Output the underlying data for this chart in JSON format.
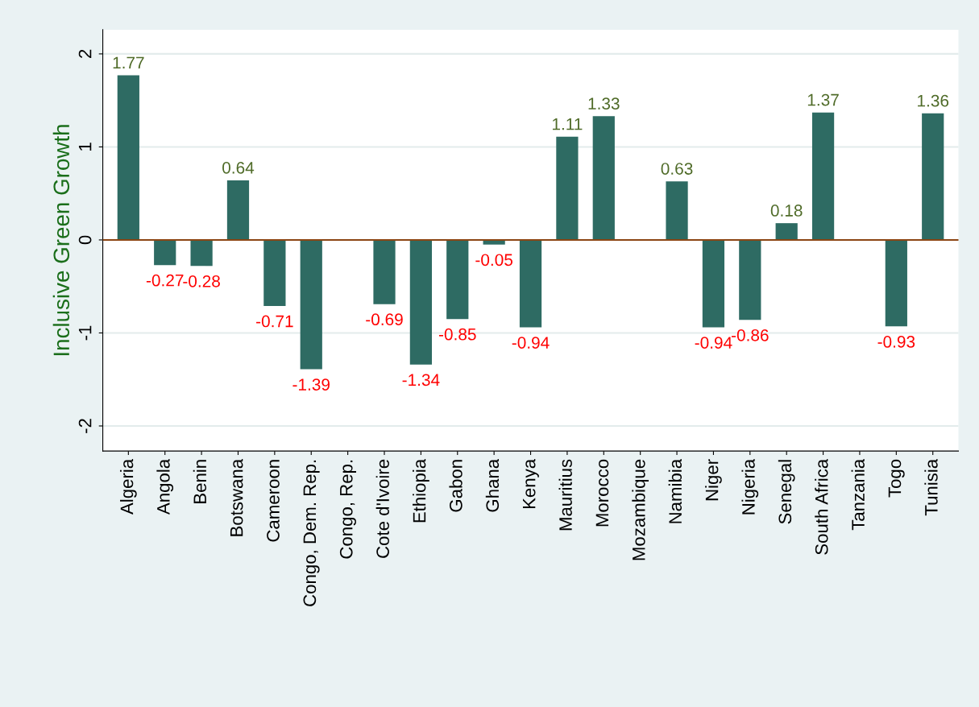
{
  "chart_data": {
    "type": "bar",
    "ylabel": "Inclusive Green Growth",
    "categories": [
      "Algeria",
      "Angola",
      "Benin",
      "Botswana",
      "Cameroon",
      "Congo, Dem. Rep.",
      "Congo, Rep.",
      "Cote d'Ivoire",
      "Ethiopia",
      "Gabon",
      "Ghana",
      "Kenya",
      "Mauritius",
      "Morocco",
      "Mozambique",
      "Namibia",
      "Niger",
      "Nigeria",
      "Senegal",
      "South Africa",
      "Tanzania",
      "Togo",
      "Tunisia"
    ],
    "values": [
      1.77,
      -0.27,
      -0.28,
      0.64,
      -0.71,
      -1.39,
      null,
      -0.69,
      -1.34,
      -0.85,
      -0.05,
      -0.94,
      1.11,
      1.33,
      null,
      0.63,
      -0.94,
      -0.86,
      0.18,
      1.37,
      null,
      -0.93,
      1.36
    ],
    "color": "#2e6b63",
    "ylim": [
      -2.27,
      2.26
    ],
    "yticks": [
      {
        "value": -2,
        "label": "-2"
      },
      {
        "value": -1,
        "label": "-1"
      },
      0,
      1,
      2
    ],
    "grid": "y",
    "data_labels": true,
    "ref_lines": [
      {
        "axis": "y",
        "value": 0,
        "color": "#8b4513"
      }
    ]
  }
}
